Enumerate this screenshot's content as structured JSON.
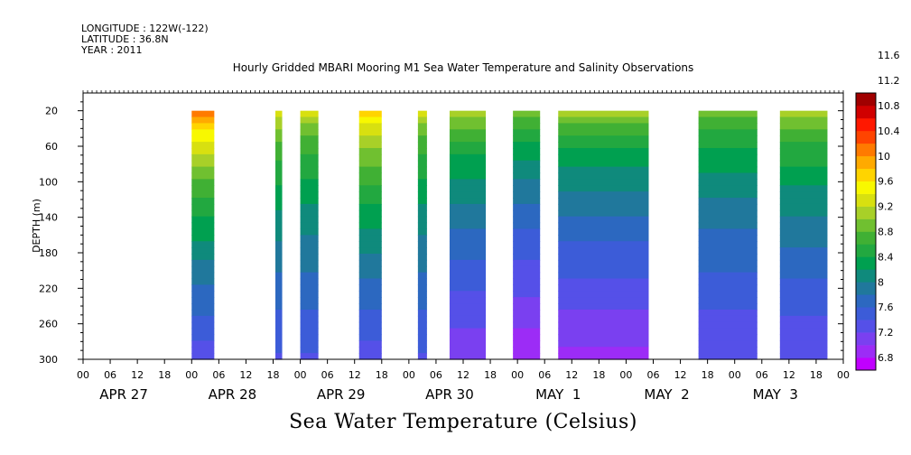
{
  "header": {
    "longitude": "LONGITUDE : 122W(-122)",
    "latitude": "LATITUDE : 36.8N",
    "year": "YEAR : 2011"
  },
  "chart_data": {
    "type": "heatmap",
    "title": "Hourly Gridded MBARI Mooring M1 Sea Water Temperature and Salinity Observations",
    "variable_title": "Sea Water Temperature (Celsius)",
    "ylabel": "DEPTH (m)",
    "ylim": [
      300,
      0
    ],
    "y_ticks": [
      20,
      60,
      100,
      140,
      180,
      220,
      260,
      300
    ],
    "xlim_hours": [
      0,
      168
    ],
    "x_hour_labels": [
      "00",
      "06",
      "12",
      "18",
      "00",
      "06",
      "12",
      "18",
      "00",
      "06",
      "12",
      "18",
      "00",
      "06",
      "12",
      "18",
      "00",
      "06",
      "12",
      "18",
      "00",
      "06",
      "12",
      "18",
      "00",
      "06",
      "12",
      "18",
      "00"
    ],
    "x_day_labels": [
      "APR 27",
      "APR 28",
      "APR 29",
      "APR 30",
      "MAY  1",
      "MAY  2",
      "MAY  3"
    ],
    "colorbar": {
      "levels": [
        "6.8",
        "7.2",
        "7.6",
        "8",
        "8.4",
        "8.8",
        "9.2",
        "9.6",
        "10",
        "10.4",
        "10.8",
        "11.2",
        "11.6"
      ],
      "colors": [
        "#c000ff",
        "#9c2cf6",
        "#7a40f0",
        "#5550e8",
        "#3c5cd8",
        "#2c68c0",
        "#20789c",
        "#0f8a7c",
        "#00a050",
        "#22a840",
        "#40b034",
        "#70c030",
        "#a8d028",
        "#d8e010",
        "#f8f800",
        "#ffd400",
        "#ffaa00",
        "#ff7a00",
        "#ff4400",
        "#ff1800",
        "#d00000",
        "#a00000"
      ]
    },
    "data_segments": [
      {
        "start_h": 24.0,
        "end_h": 29.0,
        "top_temp": 11.0,
        "bottom_temp": 7.4
      },
      {
        "start_h": 42.5,
        "end_h": 44.0,
        "top_temp": 10.0,
        "bottom_temp": 7.5
      },
      {
        "start_h": 48.0,
        "end_h": 52.0,
        "top_temp": 9.9,
        "bottom_temp": 7.5
      },
      {
        "start_h": 61.0,
        "end_h": 66.0,
        "top_temp": 10.6,
        "bottom_temp": 7.4
      },
      {
        "start_h": 74.0,
        "end_h": 76.0,
        "top_temp": 9.9,
        "bottom_temp": 7.5
      },
      {
        "start_h": 81.0,
        "end_h": 89.0,
        "top_temp": 9.8,
        "bottom_temp": 7.1
      },
      {
        "start_h": 95.0,
        "end_h": 101.0,
        "top_temp": 9.6,
        "bottom_temp": 6.9
      },
      {
        "start_h": 105.0,
        "end_h": 125.0,
        "top_temp": 9.7,
        "bottom_temp": 7.0
      },
      {
        "start_h": 136.0,
        "end_h": 149.0,
        "top_temp": 9.5,
        "bottom_temp": 7.3
      },
      {
        "start_h": 154.0,
        "end_h": 164.5,
        "top_temp": 9.8,
        "bottom_temp": 7.3
      }
    ]
  }
}
